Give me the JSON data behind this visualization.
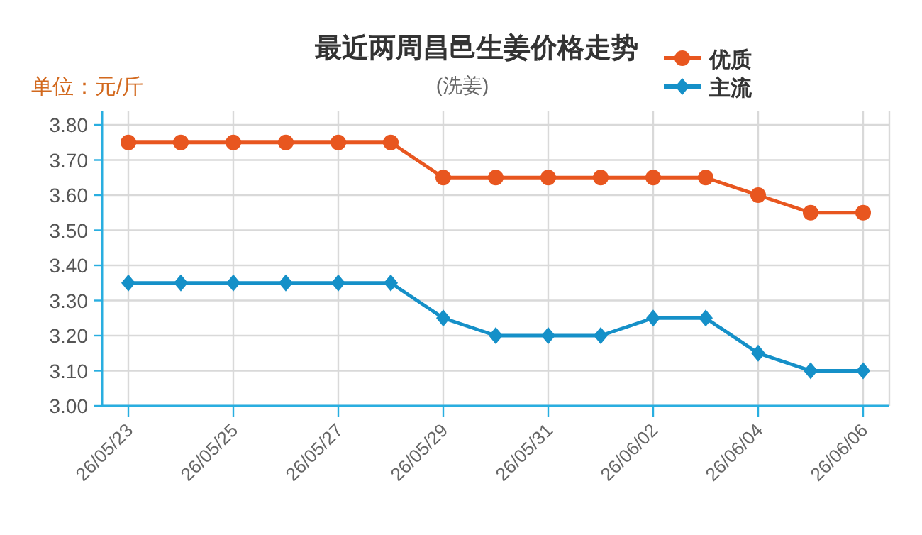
{
  "chart_data": {
    "type": "line",
    "title": "最近两周昌邑生姜价格走势",
    "subtitle": "(洗姜)",
    "ylabel": "单位：元/斤",
    "categories": [
      "26/05/23",
      null,
      "26/05/25",
      null,
      "26/05/27",
      null,
      "26/05/29",
      null,
      "26/05/31",
      null,
      "26/06/02",
      null,
      "26/06/04",
      null,
      "26/06/06"
    ],
    "series": [
      {
        "name": "优质",
        "color": "#e8561f",
        "marker": "circle",
        "values": [
          3.75,
          3.75,
          3.75,
          3.75,
          3.75,
          3.75,
          3.65,
          3.65,
          3.65,
          3.65,
          3.65,
          3.65,
          3.6,
          3.55,
          3.55
        ]
      },
      {
        "name": "主流",
        "color": "#1590c8",
        "marker": "diamond",
        "values": [
          3.35,
          3.35,
          3.35,
          3.35,
          3.35,
          3.35,
          3.25,
          3.2,
          3.2,
          3.2,
          3.25,
          3.25,
          3.15,
          3.1,
          3.1
        ]
      }
    ],
    "ylim": [
      3.0,
      3.8
    ],
    "yticks": [
      {
        "value": 3.0,
        "label": "3.00"
      },
      {
        "value": 3.1,
        "label": "3.10"
      },
      {
        "value": 3.2,
        "label": "3.20"
      },
      {
        "value": 3.3,
        "label": "3.30"
      },
      {
        "value": 3.4,
        "label": "3.40"
      },
      {
        "value": 3.5,
        "label": "3.50"
      },
      {
        "value": 3.6,
        "label": "3.60"
      },
      {
        "value": 3.7,
        "label": "3.70"
      },
      {
        "value": 3.8,
        "label": "3.80"
      }
    ],
    "grid": true,
    "legend": "top right",
    "line_style": "solid"
  }
}
